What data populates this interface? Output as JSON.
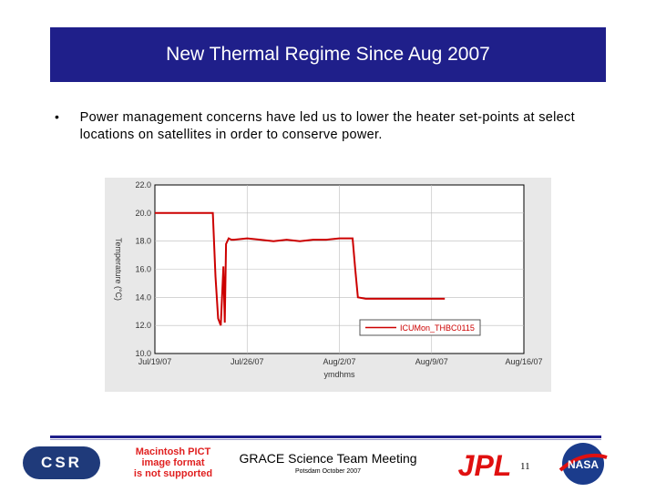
{
  "slide": {
    "title": "New Thermal Regime Since Aug 2007",
    "bullet": "•",
    "bullet_text": "Power management concerns have led us to lower the heater set-points at select locations on satellites in order to conserve power."
  },
  "footer": {
    "logo_text": "CSR",
    "pict_placeholder": [
      "Macintosh PICT",
      "image format",
      "is not supported"
    ],
    "meeting_title": "GRACE Science Team Meeting",
    "meeting_sub": "Potsdam October 2007",
    "jpl_text": "JPL",
    "slide_number": "11",
    "nasa_text": "NASA"
  },
  "chart_data": {
    "type": "line",
    "title": "",
    "xlabel": "ymdhms",
    "ylabel": "Temperature (°C)",
    "ylim": [
      10.0,
      22.0
    ],
    "yticks": [
      "10.0",
      "12.0",
      "14.0",
      "16.0",
      "18.0",
      "20.0",
      "22.0"
    ],
    "xlim": [
      "2007-07-19",
      "2007-08-16"
    ],
    "xticks": [
      "Jul/19/07",
      "Jul/26/07",
      "Aug/2/07",
      "Aug/9/07",
      "Aug/16/07"
    ],
    "grid": true,
    "legend": "bottom-right",
    "series": [
      {
        "name": "ICUMon_THBC0115",
        "color": "#cc0000",
        "x_days": [
          0.0,
          1.0,
          2.0,
          3.0,
          4.0,
          4.4,
          4.6,
          4.8,
          5.0,
          5.2,
          5.3,
          5.4,
          5.6,
          5.8,
          6.0,
          7.0,
          8.0,
          9.0,
          10.0,
          11.0,
          12.0,
          13.0,
          14.0,
          15.0,
          15.2,
          15.4,
          16.0,
          17.0,
          18.0,
          19.0,
          20.0,
          21.0,
          22.0
        ],
        "y": [
          20.0,
          20.0,
          20.0,
          20.0,
          20.0,
          20.0,
          15.5,
          12.5,
          12.0,
          16.2,
          12.2,
          17.8,
          18.2,
          18.1,
          18.1,
          18.2,
          18.1,
          18.0,
          18.1,
          18.0,
          18.1,
          18.1,
          18.2,
          18.2,
          16.0,
          14.0,
          13.9,
          13.9,
          13.9,
          13.9,
          13.9,
          13.9,
          13.9
        ]
      }
    ]
  }
}
